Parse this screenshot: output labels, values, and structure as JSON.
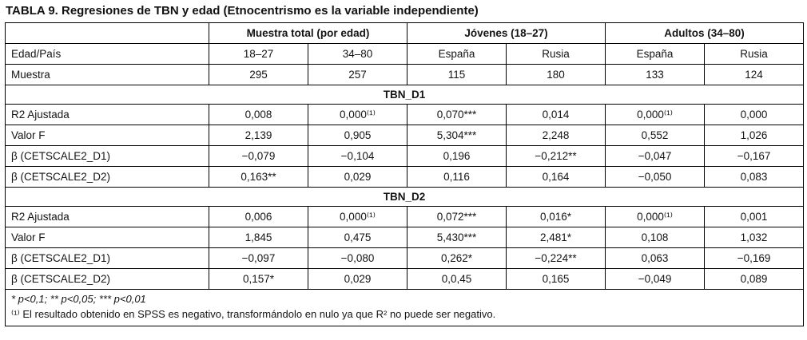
{
  "title": "TABLA 9. Regresiones de TBN y edad (Etnocentrismo es la variable independiente)",
  "table": {
    "group_headers": [
      {
        "label": "",
        "span": 1
      },
      {
        "label": "Muestra total (por edad)",
        "span": 2
      },
      {
        "label": "Jóvenes (18–27)",
        "span": 2
      },
      {
        "label": "Adultos (34–80)",
        "span": 2
      }
    ],
    "column_header_row": {
      "label": "Edad/País",
      "cells": [
        "18–27",
        "34–80",
        "España",
        "Rusia",
        "España",
        "Rusia"
      ]
    },
    "sample_row": {
      "label": "Muestra",
      "cells": [
        "295",
        "257",
        "115",
        "180",
        "133",
        "124"
      ]
    },
    "sections": [
      {
        "title": "TBN_D1",
        "rows": [
          {
            "label": "R2 Ajustada",
            "cells": [
              "0,008",
              "0,000⁽¹⁾",
              "0,070***",
              "0,014",
              "0,000⁽¹⁾",
              "0,000"
            ]
          },
          {
            "label": "Valor F",
            "cells": [
              "2,139",
              "0,905",
              "5,304***",
              "2,248",
              "0,552",
              "1,026"
            ]
          },
          {
            "label": "β (CETSCALE2_D1)",
            "cells": [
              "−0,079",
              "−0,104",
              "0,196",
              "−0,212**",
              "−0,047",
              "−0,167"
            ]
          },
          {
            "label": "β (CETSCALE2_D2)",
            "cells": [
              "0,163**",
              "0,029",
              "0,116",
              "0,164",
              "−0,050",
              "0,083"
            ]
          }
        ]
      },
      {
        "title": "TBN_D2",
        "rows": [
          {
            "label": "R2 Ajustada",
            "cells": [
              "0,006",
              "0,000⁽¹⁾",
              "0,072***",
              "0,016*",
              "0,000⁽¹⁾",
              "0,001"
            ]
          },
          {
            "label": "Valor F",
            "cells": [
              "1,845",
              "0,475",
              "5,430***",
              "2,481*",
              "0,108",
              "1,032"
            ]
          },
          {
            "label": "β (CETSCALE2_D1)",
            "cells": [
              "−0,097",
              "−0,080",
              "0,262*",
              "−0,224**",
              "0,063",
              "−0,169"
            ]
          },
          {
            "label": "β (CETSCALE2_D2)",
            "cells": [
              "0,157*",
              "0,029",
              "0,0,45",
              "0,165",
              "−0,049",
              "0,089"
            ]
          }
        ]
      }
    ],
    "footnotes": [
      "* p<0,1; ** p<0,05; *** p<0,01",
      "⁽¹⁾ El resultado obtenido en SPSS es negativo, transformándolo en nulo ya que R² no puede ser negativo."
    ]
  }
}
